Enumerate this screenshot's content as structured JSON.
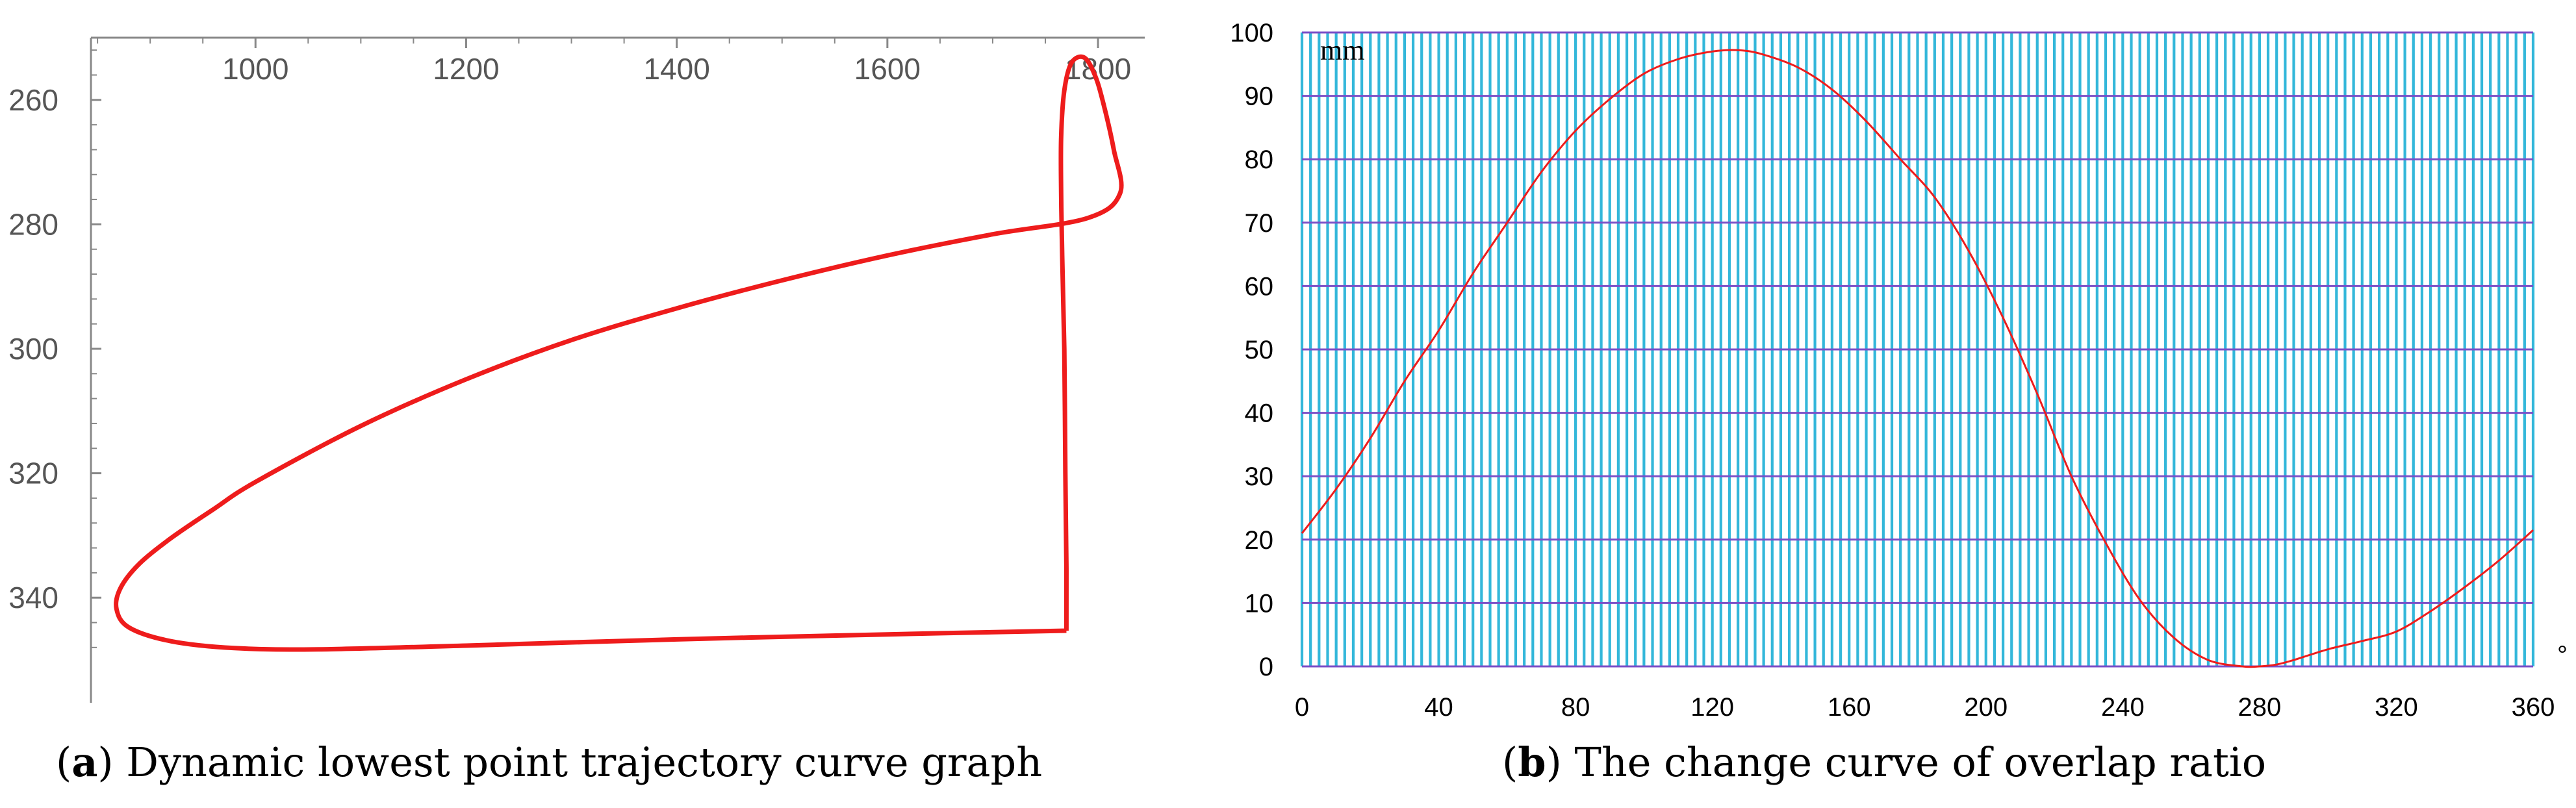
{
  "chart_data": [
    {
      "id": "a",
      "type": "line",
      "caption": {
        "letter": "a",
        "text": "Dynamic lowest point trajectory curve graph"
      },
      "xlim": [
        845,
        1810
      ],
      "ylim": [
        250,
        352
      ],
      "y_inverted": true,
      "x_ticks": [
        "1000",
        "1200",
        "1400",
        "1600",
        "1800"
      ],
      "y_ticks": [
        "260",
        "280",
        "300",
        "320",
        "340"
      ],
      "line_color": "#ee1c1c",
      "series": [
        {
          "points": [
            [
              1770,
              345.3
            ],
            [
              1600,
              345.9
            ],
            [
              1400,
              346.7
            ],
            [
              1200,
              347.7
            ],
            [
              1060,
              348.3
            ],
            [
              980,
              348.1
            ],
            [
              920,
              347.0
            ],
            [
              880,
              344.8
            ],
            [
              868,
              341.8
            ],
            [
              872,
              338.4
            ],
            [
              890,
              334.5
            ],
            [
              920,
              330.4
            ],
            [
              960,
              325.8
            ],
            [
              1000,
              321.4
            ],
            [
              1100,
              312.4
            ],
            [
              1200,
              304.9
            ],
            [
              1300,
              298.6
            ],
            [
              1400,
              293.5
            ],
            [
              1500,
              289.0
            ],
            [
              1600,
              285.0
            ],
            [
              1700,
              281.6
            ],
            [
              1790,
              279.0
            ],
            [
              1821,
              275.0
            ],
            [
              1815,
              268.0
            ],
            [
              1805,
              260.5
            ],
            [
              1797,
              256.0
            ],
            [
              1787,
              253.2
            ],
            [
              1775,
              254.0
            ],
            [
              1768,
              258.5
            ],
            [
              1765,
              266.0
            ],
            [
              1765,
              275.0
            ],
            [
              1766,
              285.0
            ],
            [
              1768,
              300.0
            ],
            [
              1769,
              320.0
            ],
            [
              1770,
              335.0
            ],
            [
              1770,
              345.3
            ]
          ]
        }
      ]
    },
    {
      "id": "b",
      "type": "line",
      "caption": {
        "letter": "b",
        "text": "The change curve of overlap ratio"
      },
      "xlim": [
        0,
        360
      ],
      "ylim": [
        0,
        100
      ],
      "x_ticks": [
        "0",
        "40",
        "80",
        "120",
        "160",
        "200",
        "240",
        "280",
        "320",
        "360"
      ],
      "y_ticks": [
        "0",
        "10",
        "20",
        "30",
        "40",
        "50",
        "60",
        "70",
        "80",
        "90",
        "100"
      ],
      "x_unit": "°",
      "y_unit": "mm",
      "grid": true,
      "plot_background": "#ffffff",
      "vertical_grid_color": "#33b7da",
      "horizontal_grid_color": "#7a4fc7",
      "line_color": "#ee1c1c",
      "series": [
        {
          "x": [
            0,
            10,
            20,
            30,
            40,
            50,
            60,
            70,
            80,
            90,
            100,
            110,
            120,
            128,
            135,
            145,
            155,
            165,
            175,
            185,
            195,
            205,
            215,
            225,
            235,
            245,
            255,
            265,
            275,
            280,
            285,
            290,
            300,
            310,
            320,
            330,
            340,
            350,
            360
          ],
          "y": [
            21,
            28,
            36,
            45,
            53,
            62,
            70,
            78,
            84.5,
            89.5,
            93.5,
            95.8,
            97,
            97.2,
            96.5,
            94.5,
            91,
            86,
            80,
            74,
            65.5,
            55,
            43,
            30,
            19.5,
            10.5,
            4.5,
            1,
            0,
            0,
            0.3,
            1,
            2.7,
            4,
            5.5,
            8.7,
            12.5,
            16.7,
            21.5
          ]
        }
      ]
    }
  ]
}
